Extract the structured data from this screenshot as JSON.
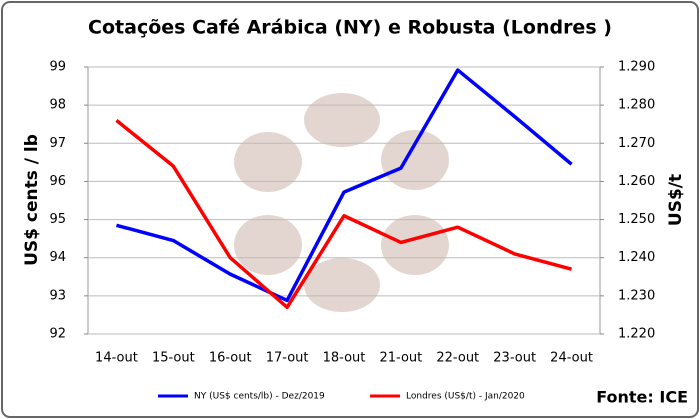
{
  "chart_data": {
    "type": "line",
    "title": "Cotações Café Arábica (NY) e Robusta (Londres )",
    "y_label": "US$ cents / lb",
    "y2_label": "US$/t",
    "source": "Fonte: ICE",
    "categories": [
      "14-out",
      "15-out",
      "16-out",
      "17-out",
      "18-out",
      "21-out",
      "22-out",
      "23-out",
      "24-out"
    ],
    "series": [
      {
        "name": "NY (US$ cents/lb) - Dez/2019",
        "color": "#0000ff",
        "values": [
          94.85,
          94.45,
          93.57,
          92.88,
          95.72,
          96.35,
          98.92,
          97.7,
          96.45
        ]
      },
      {
        "name": "Londres (US$/t) - Jan/2020",
        "color": "#ff0000",
        "axis": "y2",
        "values": [
          1276,
          1264,
          1240,
          1227,
          1251,
          1244,
          1248,
          1241,
          1237
        ]
      }
    ],
    "ylim": [
      92,
      99
    ],
    "yticks": [
      92,
      93,
      94,
      95,
      96,
      97,
      98,
      99
    ],
    "y2lim": [
      1220,
      1290
    ],
    "y2ticks": [
      {
        "value": 1220,
        "label": "1.220"
      },
      {
        "value": 1230,
        "label": "1.230"
      },
      {
        "value": 1240,
        "label": "1.240"
      },
      {
        "value": 1250,
        "label": "1.250"
      },
      {
        "value": 1260,
        "label": "1.260"
      },
      {
        "value": 1270,
        "label": "1.270"
      },
      {
        "value": 1280,
        "label": "1.280"
      },
      {
        "value": 1290,
        "label": "1.290"
      }
    ],
    "grid": true,
    "legend": "bottom"
  }
}
